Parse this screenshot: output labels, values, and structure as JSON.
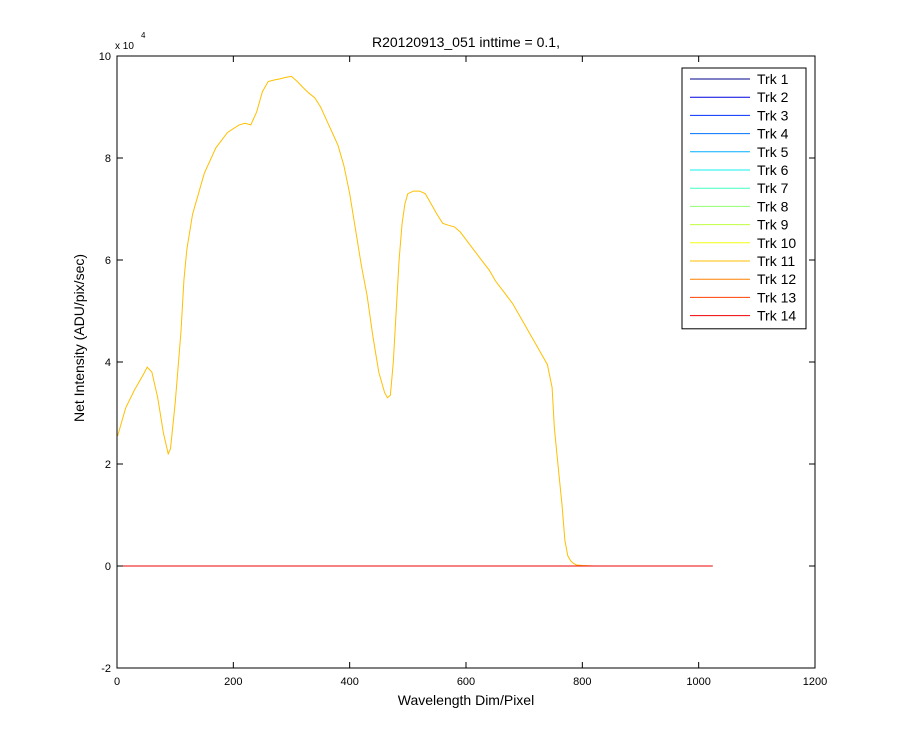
{
  "chart_data": {
    "type": "line",
    "title": "R20120913_051 inttime = 0.1,",
    "xlabel": "Wavelength Dim/Pixel",
    "ylabel": "Net Intensity (ADU/pix/sec)",
    "xlim": [
      0,
      1200
    ],
    "ylim": [
      -20000,
      100000
    ],
    "x_ticks": [
      0,
      200,
      400,
      600,
      800,
      1000,
      1200
    ],
    "x_tick_labels": [
      "0",
      "200",
      "400",
      "600",
      "800",
      "1000",
      "1200"
    ],
    "y_ticks": [
      -20000,
      0,
      20000,
      40000,
      60000,
      80000,
      100000
    ],
    "y_tick_labels": [
      "-2",
      "0",
      "2",
      "4",
      "6",
      "8",
      "10"
    ],
    "y_exponent_label": {
      "base": "x 10",
      "power": "4"
    },
    "grid": false,
    "legend_position": "top-right",
    "series": [
      {
        "name": "Trk 1",
        "color": "#00008f",
        "x": [
          1,
          1024
        ],
        "y": [
          0,
          0
        ]
      },
      {
        "name": "Trk 2",
        "color": "#0000df",
        "x": [
          1,
          1024
        ],
        "y": [
          0,
          0
        ]
      },
      {
        "name": "Trk 3",
        "color": "#0030ff",
        "x": [
          1,
          1024
        ],
        "y": [
          0,
          0
        ]
      },
      {
        "name": "Trk 4",
        "color": "#0070ff",
        "x": [
          1,
          1024
        ],
        "y": [
          0,
          0
        ]
      },
      {
        "name": "Trk 5",
        "color": "#00afff",
        "x": [
          1,
          1024
        ],
        "y": [
          0,
          0
        ]
      },
      {
        "name": "Trk 6",
        "color": "#10efef",
        "x": [
          1,
          1024
        ],
        "y": [
          0,
          0
        ]
      },
      {
        "name": "Trk 7",
        "color": "#40ffbf",
        "x": [
          1,
          1024
        ],
        "y": [
          0,
          0
        ]
      },
      {
        "name": "Trk 8",
        "color": "#8fff70",
        "x": [
          1,
          1024
        ],
        "y": [
          0,
          0
        ]
      },
      {
        "name": "Trk 9",
        "color": "#bfff40",
        "x": [
          1,
          1024
        ],
        "y": [
          0,
          0
        ]
      },
      {
        "name": "Trk 10",
        "color": "#efff10",
        "x": [
          1,
          1024
        ],
        "y": [
          0,
          0
        ]
      },
      {
        "name": "Trk 11",
        "color": "#ffbf00",
        "x": [
          1,
          15,
          30,
          45,
          52,
          60,
          70,
          80,
          88,
          92,
          100,
          110,
          115,
          120,
          130,
          150,
          170,
          190,
          210,
          220,
          230,
          240,
          250,
          260,
          270,
          280,
          290,
          300,
          310,
          320,
          330,
          340,
          350,
          360,
          370,
          380,
          390,
          400,
          410,
          420,
          430,
          440,
          450,
          460,
          465,
          470,
          475,
          480,
          485,
          490,
          495,
          500,
          510,
          520,
          530,
          540,
          550,
          560,
          570,
          580,
          590,
          600,
          610,
          620,
          630,
          640,
          650,
          660,
          670,
          680,
          690,
          700,
          710,
          720,
          730,
          740,
          748,
          752,
          758,
          765,
          770,
          775,
          780,
          785,
          790,
          800,
          820,
          850,
          880,
          900,
          950,
          1000,
          1024
        ],
        "y": [
          25500,
          31000,
          34500,
          37500,
          39000,
          38000,
          33000,
          26000,
          22000,
          23000,
          32000,
          46000,
          56000,
          62000,
          69000,
          77000,
          82000,
          85000,
          86500,
          86800,
          86500,
          89000,
          93000,
          95000,
          95300,
          95500,
          95800,
          96000,
          95000,
          93800,
          92700,
          91800,
          90000,
          87500,
          85000,
          82500,
          78500,
          73000,
          66000,
          59000,
          53000,
          45000,
          38000,
          34000,
          33000,
          33500,
          40000,
          50000,
          60000,
          67000,
          71000,
          73000,
          73500,
          73500,
          73000,
          71000,
          69000,
          67200,
          66800,
          66500,
          65500,
          64000,
          62500,
          61000,
          59500,
          58000,
          56000,
          54500,
          53000,
          51500,
          49500,
          47500,
          45500,
          43500,
          41500,
          39500,
          35000,
          27000,
          20000,
          12000,
          5000,
          2000,
          1000,
          500,
          200,
          100,
          0,
          0,
          0,
          0,
          0,
          0,
          0
        ]
      },
      {
        "name": "Trk 12",
        "color": "#ff8000",
        "x": [
          1,
          1024
        ],
        "y": [
          0,
          0
        ]
      },
      {
        "name": "Trk 13",
        "color": "#ff4000",
        "x": [
          1,
          1024
        ],
        "y": [
          0,
          0
        ]
      },
      {
        "name": "Trk 14",
        "color": "#ef0000",
        "x": [
          1,
          1024
        ],
        "y": [
          0,
          0
        ]
      }
    ]
  }
}
